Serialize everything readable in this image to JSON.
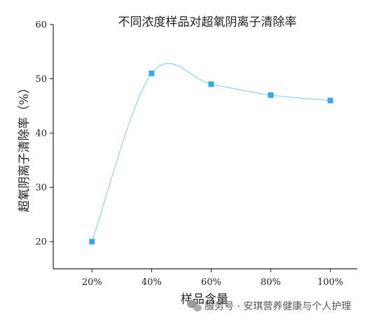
{
  "chart_data": {
    "type": "line",
    "title": "不同浓度样品对超氧阴离子清除率",
    "xlabel": "样品含量",
    "ylabel": "超氧阴离子清除率（%）",
    "categories": [
      "20%",
      "40%",
      "60%",
      "80%",
      "100%"
    ],
    "x": [
      20,
      40,
      60,
      80,
      100
    ],
    "series": [
      {
        "values": [
          20,
          51,
          49,
          47,
          46
        ],
        "marker": "square",
        "line": "smooth-spline"
      }
    ],
    "ylim": [
      15,
      60
    ],
    "xlim": [
      7,
      109
    ],
    "yticks": [
      20,
      30,
      40,
      50,
      60
    ],
    "grid": false,
    "colors": {
      "marker": "#3aa8e8",
      "line": "#8fd3ec",
      "axis": "#222222"
    }
  },
  "watermark": {
    "text": "服务号 · 安琪营养健康与个人护理",
    "icon": "wechat-icon"
  }
}
